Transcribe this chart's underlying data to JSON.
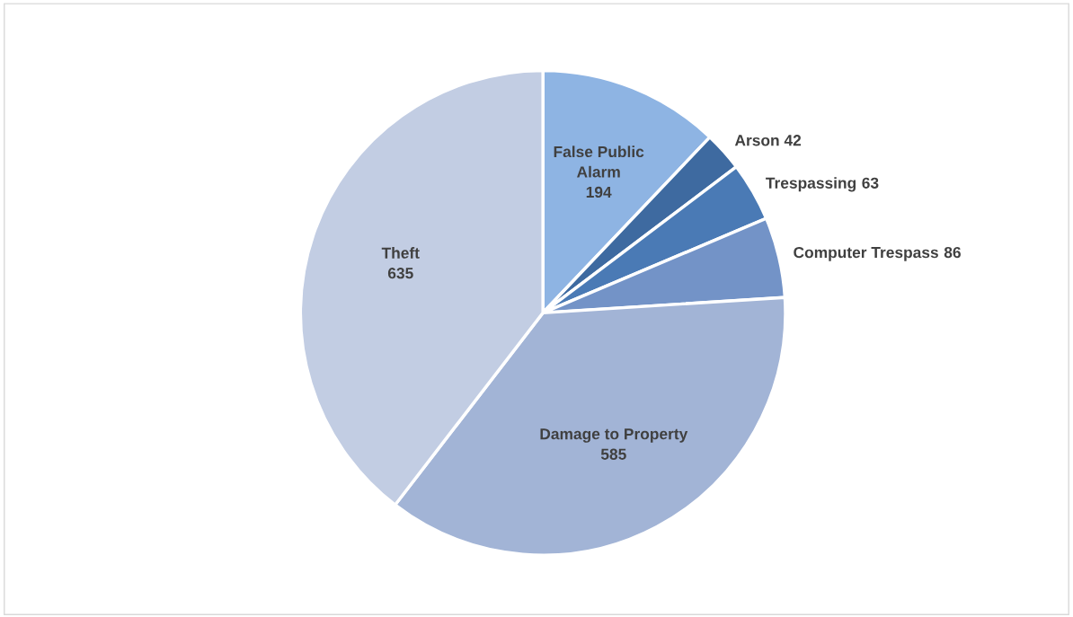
{
  "chart_data": {
    "type": "pie",
    "categories": [
      "False Public Alarm",
      "Arson",
      "Trespassing",
      "Computer Trespass",
      "Damage to Property",
      "Theft"
    ],
    "values": [
      194,
      42,
      63,
      86,
      585,
      635
    ],
    "colors": [
      "#8eb4e3",
      "#3e6aa0",
      "#4a7ab5",
      "#7393c7",
      "#a2b4d6",
      "#c2cde3"
    ],
    "data_labels": true,
    "legend": false
  }
}
